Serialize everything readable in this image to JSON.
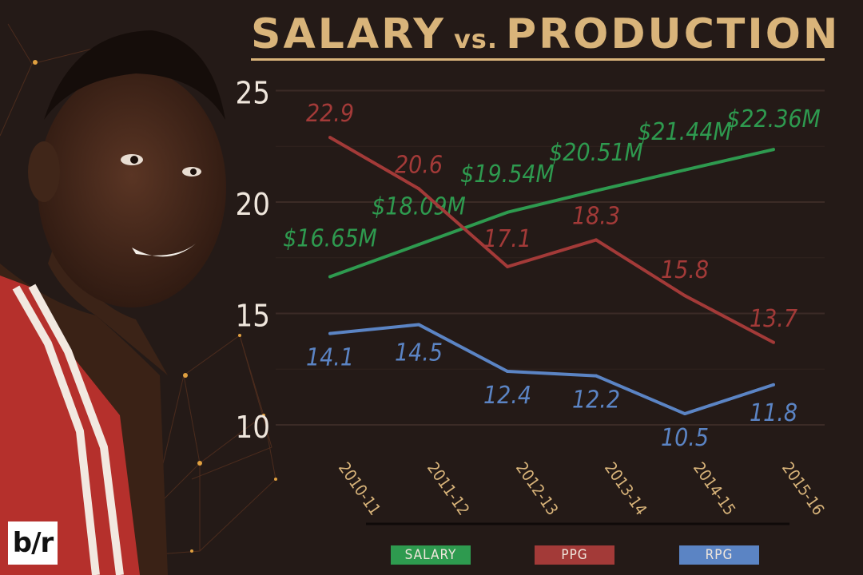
{
  "title_main": "SALARY",
  "title_vs": "vs.",
  "title_sub": "PRODUCTION",
  "logo_text": "b/r",
  "colors": {
    "salary": "#2e9a4f",
    "ppg": "#a33a38",
    "rpg": "#5b84c4",
    "gold": "#d9b47a",
    "background": "#241a17"
  },
  "chart_data": {
    "type": "line",
    "title": "SALARY vs. PRODUCTION",
    "categories": [
      "2010-11",
      "2011-12",
      "2012-13",
      "2013-14",
      "2014-15",
      "2015-16"
    ],
    "ylim": [
      10,
      25
    ],
    "yticks": [
      "10",
      "15",
      "20",
      "25"
    ],
    "grid": true,
    "legend_position": "bottom",
    "series": [
      {
        "name": "SALARY",
        "color": "#2e9a4f",
        "values": [
          16.65,
          18.09,
          19.54,
          20.51,
          21.44,
          22.36
        ],
        "labels": [
          "$16.65M",
          "$18.09M",
          "$19.54M",
          "$20.51M",
          "$21.44M",
          "$22.36M"
        ]
      },
      {
        "name": "PPG",
        "color": "#a33a38",
        "values": [
          22.9,
          20.6,
          17.1,
          18.3,
          15.8,
          13.7
        ],
        "labels": [
          "22.9",
          "20.6",
          "17.1",
          "18.3",
          "15.8",
          "13.7"
        ]
      },
      {
        "name": "RPG",
        "color": "#5b84c4",
        "values": [
          14.1,
          14.5,
          12.4,
          12.2,
          10.5,
          11.8
        ],
        "labels": [
          "14.1",
          "14.5",
          "12.4",
          "12.2",
          "10.5",
          "11.8"
        ]
      }
    ]
  }
}
